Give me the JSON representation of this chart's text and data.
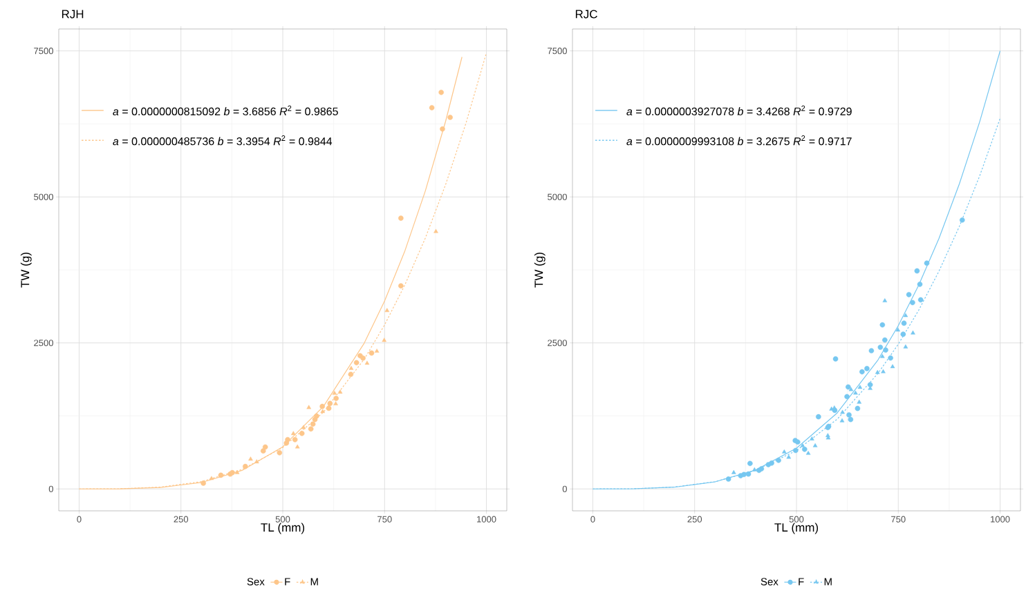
{
  "chart_data": [
    {
      "type": "scatter",
      "title": "RJH",
      "xlabel": "TL (mm)",
      "ylabel": "TW (g)",
      "legend_title": "Sex",
      "legend": "bottom",
      "grid": true,
      "xlim": [
        -50,
        1050
      ],
      "ylim": [
        -375,
        7875
      ],
      "xticks": [
        0,
        250,
        500,
        750,
        1000
      ],
      "yticks": [
        0,
        2500,
        5000,
        7500
      ],
      "series": [
        {
          "name": "F",
          "type": "scatter",
          "marker": "circle",
          "line_style": "solid",
          "color": "#fdc68a",
          "x": [
            305,
            348,
            371,
            376,
            408,
            457,
            452,
            492,
            512,
            509,
            530,
            547,
            569,
            574,
            579,
            583,
            597,
            613,
            616,
            631,
            667,
            681,
            690,
            697,
            718,
            790,
            790,
            866,
            889,
            911,
            892
          ],
          "values": [
            98,
            235,
            255,
            279,
            385,
            718,
            651,
            620,
            844,
            785,
            844,
            951,
            1027,
            1110,
            1189,
            1248,
            1413,
            1381,
            1464,
            1550,
            1962,
            2162,
            2280,
            2240,
            2327,
            3477,
            4636,
            6527,
            6790,
            6362,
            6163
          ]
        },
        {
          "name": "M",
          "type": "scatter",
          "marker": "triangle",
          "line_style": "dotted",
          "color": "#fdc68a",
          "x": [
            325,
            388,
            421,
            436,
            526,
            536,
            551,
            564,
            598,
            627,
            630,
            641,
            668,
            707,
            731,
            749,
            756,
            876
          ],
          "values": [
            177,
            279,
            510,
            463,
            946,
            718,
            1051,
            1393,
            1324,
            1637,
            1456,
            1656,
            2063,
            2151,
            2358,
            2543,
            3053,
            4407
          ]
        },
        {
          "name": "*a* = 0.0000000815092 *b* = 3.6856 *R*$^{2}$ = 0.9865",
          "type": "line",
          "line_style": "solid",
          "color": "#fdc68a",
          "x": [
            0,
            100,
            200,
            300,
            400,
            500,
            600,
            700,
            750,
            800,
            850,
            900,
            940
          ],
          "values": [
            0,
            2,
            25,
            110,
            317,
            722,
            1414,
            2496,
            3219,
            4079,
            5102,
            6300,
            7396
          ]
        },
        {
          "name": "*a* = 0.000000485736 *b* = 3.3954 *R*$^{2}$ = 0.9844",
          "type": "line",
          "line_style": "dotted",
          "color": "#fdc68a",
          "x": [
            0,
            100,
            200,
            300,
            400,
            500,
            600,
            700,
            750,
            800,
            850,
            900,
            950,
            1000
          ],
          "values": [
            0,
            3,
            32,
            125,
            333,
            709,
            1316,
            2222,
            2809,
            3497,
            4295,
            5215,
            6267,
            7468
          ]
        }
      ]
    },
    {
      "type": "scatter",
      "title": "RJC",
      "xlabel": "TL (mm)",
      "ylabel": "TW (g)",
      "legend_title": "Sex",
      "legend": "bottom",
      "grid": true,
      "xlim": [
        -50,
        1050
      ],
      "ylim": [
        -375,
        7875
      ],
      "xticks": [
        0,
        250,
        500,
        750,
        1000
      ],
      "yticks": [
        0,
        2500,
        5000,
        7500
      ],
      "series": [
        {
          "name": "F",
          "type": "scatter",
          "marker": "circle",
          "line_style": "solid",
          "color": "#76c7f0",
          "x": [
            333,
            363,
            371,
            382,
            386,
            408,
            414,
            431,
            439,
            456,
            498,
            497,
            503,
            520,
            554,
            577,
            579,
            594,
            629,
            633,
            627,
            624,
            650,
            661,
            673,
            681,
            596,
            711,
            717,
            706,
            719,
            684,
            731,
            764,
            762,
            776,
            785,
            803,
            805,
            796,
            820,
            907
          ],
          "values": [
            169,
            227,
            247,
            255,
            436,
            318,
            345,
            416,
            443,
            490,
            659,
            828,
            804,
            679,
            1236,
            1051,
            1071,
            1346,
            1268,
            1189,
            1746,
            1581,
            1378,
            2006,
            2061,
            1785,
            2226,
            2809,
            2550,
            2426,
            2379,
            2367,
            2242,
            2838,
            2649,
            3327,
            3191,
            3504,
            3238,
            3733,
            3866,
            4604
          ]
        },
        {
          "name": "M",
          "type": "scatter",
          "marker": "triangle",
          "line_style": "dotted",
          "color": "#76c7f0",
          "x": [
            346,
            397,
            470,
            481,
            515,
            529,
            538,
            546,
            577,
            578,
            586,
            593,
            612,
            613,
            634,
            645,
            654,
            656,
            681,
            699,
            713,
            717,
            711,
            736,
            749,
            768,
            786,
            768
          ],
          "values": [
            279,
            326,
            632,
            542,
            738,
            608,
            855,
            738,
            912,
            873,
            1366,
            1385,
            1166,
            1311,
            1700,
            1640,
            1484,
            1738,
            1719,
            1993,
            2006,
            3221,
            2266,
            2092,
            2720,
            2967,
            2669,
            2431
          ]
        },
        {
          "name": "*a* = 0.0000003927078 *b* = 3.4268 *R*$^{2}$ = 0.9729",
          "type": "line",
          "line_style": "solid",
          "color": "#76c7f0",
          "x": [
            0,
            100,
            200,
            300,
            400,
            500,
            600,
            700,
            750,
            800,
            850,
            900,
            950,
            1000
          ],
          "values": [
            0,
            3,
            30,
            121,
            324,
            697,
            1301,
            2207,
            2795,
            3488,
            4290,
            5224,
            6290,
            7500
          ]
        },
        {
          "name": "*a* = 0.0000009993108 *b* = 3.2675 *R*$^{2}$ = 0.9717",
          "type": "line",
          "line_style": "dotted",
          "color": "#76c7f0",
          "x": [
            0,
            100,
            200,
            300,
            400,
            500,
            600,
            700,
            750,
            800,
            850,
            900,
            950,
            1000
          ],
          "values": [
            0,
            3,
            33,
            124,
            318,
            658,
            1194,
            1977,
            2478,
            3058,
            3730,
            4496,
            5363,
            6344
          ]
        }
      ]
    }
  ]
}
